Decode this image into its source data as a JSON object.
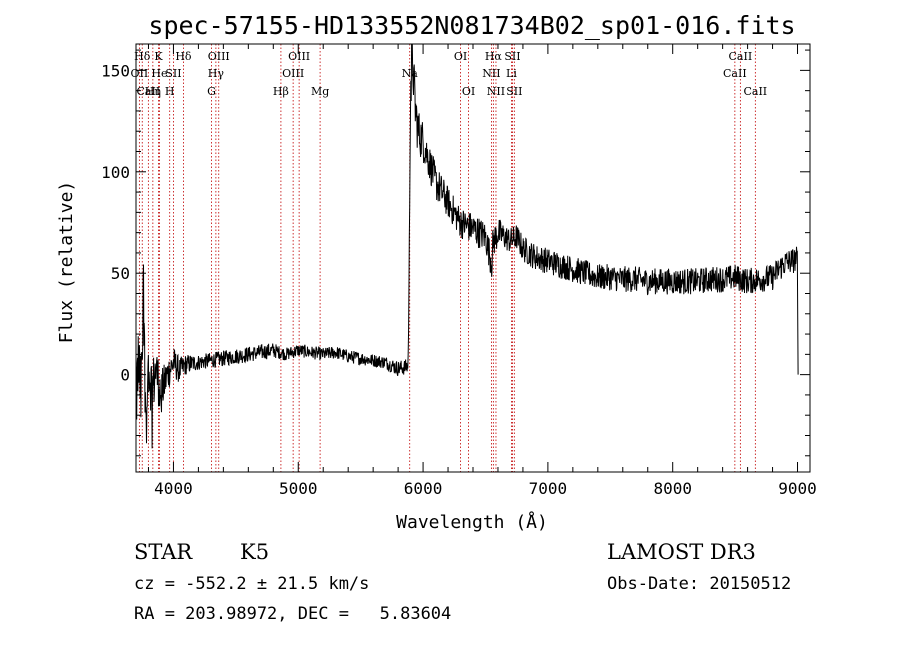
{
  "chart_data": {
    "type": "line",
    "title": "spec-57155-HD133552N081734B02_sp01-016.fits",
    "xlabel": "Wavelength (Å)",
    "ylabel": "Flux (relative)",
    "xlim": [
      3700,
      9100
    ],
    "ylim": [
      -48,
      163
    ],
    "x_ticks": [
      4000,
      5000,
      6000,
      7000,
      8000,
      9000
    ],
    "y_ticks": [
      0,
      50,
      100,
      150
    ],
    "grid": false,
    "series": [
      {
        "x": [
          3700,
          3720,
          3740,
          3760,
          3780,
          3800,
          3830,
          3860,
          3900,
          3950,
          4000,
          4050,
          4100,
          4200,
          4300,
          4400,
          4500,
          4600,
          4700,
          4800,
          4850,
          4900,
          5000,
          5100,
          5200,
          5300,
          5400,
          5500,
          5600,
          5700,
          5800,
          5880,
          5890,
          5895,
          5900,
          5905,
          5910,
          5920,
          5940,
          5960,
          6000,
          6050,
          6100,
          6200,
          6300,
          6400,
          6500,
          6550,
          6560,
          6600,
          6650,
          6700,
          6750,
          6800,
          6900,
          7000,
          7100,
          7200,
          7300,
          7400,
          7500,
          7600,
          7700,
          7800,
          7900,
          8000,
          8100,
          8200,
          8300,
          8400,
          8500,
          8600,
          8700,
          8800,
          8850,
          8900,
          8950,
          9000,
          9005
        ],
        "y": [
          -18,
          8,
          -12,
          30,
          -22,
          5,
          -8,
          3,
          -10,
          0,
          6,
          2,
          5,
          6,
          7,
          8,
          9,
          10,
          11,
          12,
          11,
          10,
          12,
          11,
          10,
          11,
          9,
          8,
          7,
          6,
          3,
          4,
          60,
          110,
          150,
          140,
          160,
          150,
          130,
          120,
          115,
          105,
          95,
          85,
          75,
          72,
          68,
          55,
          65,
          70,
          68,
          66,
          68,
          62,
          58,
          56,
          54,
          52,
          50,
          48,
          48,
          47,
          47,
          46,
          46,
          46,
          46,
          46,
          47,
          47,
          48,
          46,
          47,
          48,
          52,
          55,
          56,
          57,
          0
        ],
        "noise": [
          14,
          14,
          14,
          14,
          14,
          12,
          12,
          10,
          9,
          7,
          6,
          5,
          4,
          3,
          3,
          3,
          3,
          3,
          3,
          3,
          2.5,
          2.5,
          2.5,
          2.5,
          2.5,
          2.5,
          2.5,
          2.5,
          2.5,
          2.5,
          3,
          3,
          8,
          10,
          10,
          10,
          10,
          10,
          10,
          9,
          8,
          7,
          7,
          6,
          6,
          6,
          6,
          6,
          6,
          6,
          5,
          5,
          5,
          5,
          5,
          5,
          5,
          5,
          5,
          5,
          5,
          5,
          5,
          5,
          5,
          5,
          5,
          5,
          5,
          5,
          5,
          5,
          5,
          5,
          5,
          5,
          5,
          5,
          0
        ]
      }
    ],
    "lines": [
      {
        "label": "Hδ",
        "wl": 3750,
        "row": 0
      },
      {
        "label": "K",
        "wl": 3880,
        "row": 0
      },
      {
        "label": "Hδ",
        "wl": 4080,
        "row": 0
      },
      {
        "label": "OIII",
        "wl": 4363,
        "row": 0
      },
      {
        "label": "OIII",
        "wl": 5007,
        "row": 0
      },
      {
        "label": "OI",
        "wl": 6300,
        "row": 0
      },
      {
        "label": "Hα",
        "wl": 6563,
        "row": 0
      },
      {
        "label": "SII",
        "wl": 6716,
        "row": 0
      },
      {
        "label": "CaII",
        "wl": 8542,
        "row": 0
      },
      {
        "label": "OII",
        "wl": 3727,
        "row": 1
      },
      {
        "label": "He",
        "wl": 3888,
        "row": 1
      },
      {
        "label": "SII",
        "wl": 4000,
        "row": 1
      },
      {
        "label": "Hγ",
        "wl": 4340,
        "row": 1
      },
      {
        "label": "OIII",
        "wl": 4959,
        "row": 1
      },
      {
        "label": "Na",
        "wl": 5893,
        "row": 1
      },
      {
        "label": "NII",
        "wl": 6548,
        "row": 1
      },
      {
        "label": "Li",
        "wl": 6708,
        "row": 1
      },
      {
        "label": "CaII",
        "wl": 8498,
        "row": 1
      },
      {
        "label": "CaII",
        "wl": 3799,
        "row": 2
      },
      {
        "label": "Hη",
        "wl": 3835,
        "row": 2
      },
      {
        "label": "H",
        "wl": 3970,
        "row": 2
      },
      {
        "label": "G",
        "wl": 4305,
        "row": 2
      },
      {
        "label": "Hβ",
        "wl": 4861,
        "row": 2
      },
      {
        "label": "Mg",
        "wl": 5175,
        "row": 2
      },
      {
        "label": "OI",
        "wl": 6364,
        "row": 2
      },
      {
        "label": "NII",
        "wl": 6584,
        "row": 2
      },
      {
        "label": "SII",
        "wl": 6731,
        "row": 2
      },
      {
        "label": "CaII",
        "wl": 8662,
        "row": 2
      }
    ]
  },
  "info": {
    "object": "STAR",
    "subclass": "K5",
    "survey": "LAMOST DR3",
    "cz": "cz = -552.2 ± 21.5 km/s",
    "obs_date": "Obs-Date: 20150512",
    "coords": "RA = 203.98972, DEC =   5.83604"
  }
}
